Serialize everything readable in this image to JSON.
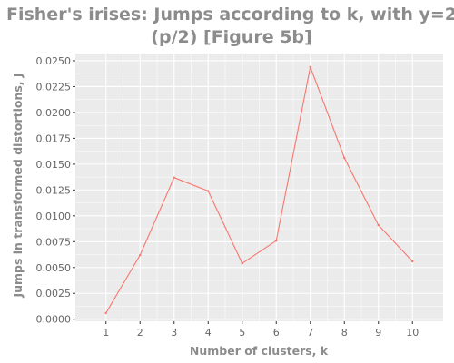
{
  "chart_data": {
    "type": "line",
    "title_lines": [
      "Fisher's irises: Jumps according to k, with y=2",
      "(p/2) [Figure 5b]"
    ],
    "xlabel": "Number of clusters, k",
    "ylabel": "Jumps in transformed distortions, J",
    "x": [
      1,
      2,
      3,
      4,
      5,
      6,
      7,
      8,
      9,
      10
    ],
    "y_ticks": [
      "0.0000",
      "0.0025",
      "0.0050",
      "0.0075",
      "0.0100",
      "0.0125",
      "0.0150",
      "0.0175",
      "0.0200",
      "0.0225",
      "0.0250"
    ],
    "series": [
      {
        "values": [
          0.0006,
          0.0062,
          0.0137,
          0.0124,
          0.0054,
          0.0076,
          0.0244,
          0.0156,
          0.0091,
          0.0056
        ],
        "color": "#f8766d"
      }
    ],
    "xlim": [
      0.1,
      10.9
    ],
    "ylim": [
      -0.0002,
      0.0257
    ],
    "grid": true,
    "background": "#ebebeb",
    "gridline_color": "#ffffff"
  }
}
